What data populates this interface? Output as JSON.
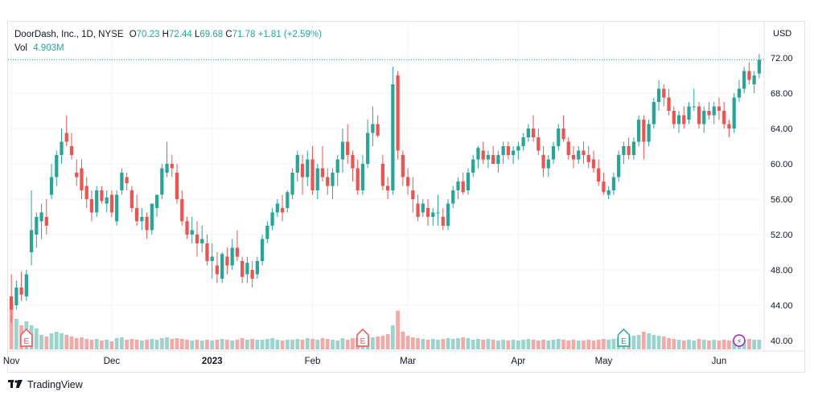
{
  "legend": {
    "symbol": "DoorDash, Inc., 1D, NYSE",
    "open_label": "O",
    "open": "70.23",
    "high_label": "H",
    "high": "72.44",
    "low_label": "L",
    "low": "69.68",
    "close_label": "C",
    "close": "71.78",
    "change": "+1.81 (+2.59%)",
    "vol_label": "Vol",
    "vol": "4.903M"
  },
  "footer": {
    "brand": "TradingView"
  },
  "colors": {
    "up": "#26a69a",
    "down": "#ef5350",
    "vol_up": "#9bd3cd",
    "vol_down": "#f4a9a7",
    "grid": "#f0f3fa",
    "text": "#131722"
  },
  "chart_data": {
    "type": "candlestick",
    "currency": "USD",
    "ylim": [
      39,
      73.5
    ],
    "y_ticks": [
      "40.00",
      "44.00",
      "48.00",
      "52.00",
      "56.00",
      "60.00",
      "64.00",
      "68.00",
      "72.00"
    ],
    "last_price": 71.78,
    "x_labels": [
      {
        "label": "Nov",
        "index": 0
      },
      {
        "label": "Dec",
        "index": 20
      },
      {
        "label": "2023",
        "index": 40
      },
      {
        "label": "Feb",
        "index": 60
      },
      {
        "label": "Mar",
        "index": 79
      },
      {
        "label": "Apr",
        "index": 101
      },
      {
        "label": "May",
        "index": 118
      },
      {
        "label": "Jun",
        "index": 141
      }
    ],
    "earnings_markers": [
      {
        "index": 3,
        "label": "E",
        "color": "#ef5350"
      },
      {
        "index": 70,
        "label": "E",
        "color": "#ef5350"
      },
      {
        "index": 122,
        "label": "E",
        "color": "#26a69a"
      }
    ],
    "dividend_markers": [
      {
        "index": 145,
        "label": "⚡",
        "color": "#9c27b0"
      }
    ],
    "candles": [
      [
        45.0,
        47.5,
        42.0,
        43.5,
        0.6
      ],
      [
        44.0,
        46.8,
        43.5,
        46.0,
        0.38
      ],
      [
        46.0,
        47.8,
        44.5,
        45.2,
        0.3
      ],
      [
        45.0,
        48.0,
        44.5,
        47.5,
        0.35
      ],
      [
        50.0,
        57.0,
        48.5,
        52.5,
        0.3
      ],
      [
        52.0,
        54.5,
        50.5,
        54.0,
        0.26
      ],
      [
        53.5,
        55.5,
        51.5,
        54.5,
        0.18
      ],
      [
        54.0,
        56.0,
        52.0,
        53.0,
        0.16
      ],
      [
        56.5,
        60.0,
        56.0,
        58.5,
        0.2
      ],
      [
        58.5,
        61.5,
        57.5,
        61.0,
        0.22
      ],
      [
        61.0,
        64.0,
        60.0,
        62.5,
        0.2
      ],
      [
        63.5,
        65.5,
        62.0,
        62.5,
        0.18
      ],
      [
        62.0,
        63.5,
        60.5,
        61.0,
        0.16
      ],
      [
        59.0,
        60.5,
        57.5,
        58.5,
        0.14
      ],
      [
        59.5,
        60.5,
        56.0,
        57.0,
        0.15
      ],
      [
        57.5,
        58.5,
        55.0,
        56.0,
        0.13
      ],
      [
        56.0,
        57.0,
        53.5,
        54.5,
        0.12
      ],
      [
        54.5,
        57.5,
        54.0,
        57.0,
        0.13
      ],
      [
        57.0,
        57.5,
        55.5,
        55.8,
        0.11
      ],
      [
        55.5,
        57.0,
        54.5,
        56.2,
        0.12
      ],
      [
        56.5,
        57.0,
        54.0,
        54.5,
        0.1
      ],
      [
        53.5,
        57.0,
        53.0,
        56.5,
        0.14
      ],
      [
        57.0,
        59.5,
        56.5,
        59.0,
        0.15
      ],
      [
        58.5,
        59.0,
        57.0,
        57.8,
        0.12
      ],
      [
        57.0,
        57.5,
        54.5,
        55.0,
        0.13
      ],
      [
        55.0,
        56.5,
        53.0,
        53.5,
        0.12
      ],
      [
        53.5,
        55.0,
        52.5,
        54.0,
        0.11
      ],
      [
        54.0,
        54.5,
        51.5,
        52.5,
        0.12
      ],
      [
        52.5,
        55.5,
        52.0,
        55.5,
        0.13
      ],
      [
        55.0,
        56.5,
        54.0,
        56.5,
        0.12
      ],
      [
        56.5,
        60.0,
        56.0,
        59.5,
        0.14
      ],
      [
        59.0,
        62.5,
        58.5,
        60.0,
        0.15
      ],
      [
        60.0,
        61.0,
        58.5,
        59.5,
        0.13
      ],
      [
        59.0,
        60.0,
        55.5,
        56.0,
        0.14
      ],
      [
        56.0,
        57.0,
        53.0,
        53.5,
        0.13
      ],
      [
        53.5,
        54.0,
        51.5,
        52.0,
        0.12
      ],
      [
        52.0,
        54.0,
        51.0,
        52.5,
        0.11
      ],
      [
        52.0,
        53.5,
        49.5,
        51.0,
        0.12
      ],
      [
        51.0,
        53.0,
        50.0,
        51.5,
        0.11
      ],
      [
        51.0,
        52.0,
        48.5,
        49.0,
        0.12
      ],
      [
        49.0,
        51.0,
        47.0,
        49.5,
        0.11
      ],
      [
        48.5,
        50.0,
        46.5,
        47.5,
        0.12
      ],
      [
        47.0,
        50.0,
        46.5,
        49.8,
        0.13
      ],
      [
        49.5,
        50.5,
        47.5,
        48.5,
        0.12
      ],
      [
        48.5,
        51.5,
        48.0,
        50.5,
        0.11
      ],
      [
        50.5,
        52.5,
        49.0,
        49.5,
        0.12
      ],
      [
        49.0,
        49.5,
        46.5,
        47.2,
        0.14
      ],
      [
        47.5,
        49.5,
        46.5,
        48.8,
        0.12
      ],
      [
        48.0,
        49.0,
        46.0,
        47.0,
        0.13
      ],
      [
        47.5,
        49.5,
        47.0,
        49.0,
        0.12
      ],
      [
        49.0,
        52.0,
        48.5,
        51.5,
        0.12
      ],
      [
        51.5,
        53.5,
        51.0,
        53.0,
        0.13
      ],
      [
        53.0,
        55.0,
        52.5,
        54.5,
        0.14
      ],
      [
        54.5,
        56.0,
        54.0,
        55.5,
        0.12
      ],
      [
        55.0,
        56.5,
        53.5,
        54.5,
        0.11
      ],
      [
        55.0,
        57.0,
        54.5,
        56.8,
        0.12
      ],
      [
        56.5,
        59.5,
        56.0,
        59.0,
        0.12
      ],
      [
        59.0,
        61.5,
        58.0,
        61.0,
        0.13
      ],
      [
        60.0,
        61.0,
        56.5,
        58.5,
        0.12
      ],
      [
        58.5,
        61.5,
        57.5,
        60.5,
        0.14
      ],
      [
        60.5,
        62.0,
        56.5,
        57.0,
        0.13
      ],
      [
        57.0,
        60.0,
        56.0,
        59.5,
        0.12
      ],
      [
        59.5,
        62.0,
        58.0,
        58.5,
        0.14
      ],
      [
        58.5,
        59.5,
        56.5,
        57.5,
        0.13
      ],
      [
        57.5,
        59.5,
        56.0,
        59.0,
        0.12
      ],
      [
        59.0,
        61.0,
        57.5,
        60.5,
        0.11
      ],
      [
        60.5,
        64.0,
        59.0,
        62.5,
        0.14
      ],
      [
        62.5,
        64.5,
        60.0,
        61.0,
        0.12
      ],
      [
        61.0,
        61.5,
        58.0,
        59.5,
        0.14
      ],
      [
        59.5,
        60.5,
        56.5,
        57.0,
        0.15
      ],
      [
        57.0,
        61.0,
        56.5,
        60.0,
        0.13
      ],
      [
        60.0,
        65.0,
        59.5,
        63.5,
        0.16
      ],
      [
        63.5,
        66.5,
        62.0,
        64.5,
        0.15
      ],
      [
        64.5,
        65.5,
        63.0,
        63.2,
        0.16
      ],
      [
        60.0,
        61.0,
        57.0,
        57.5,
        0.17
      ],
      [
        57.5,
        58.5,
        56.0,
        57.0,
        0.19
      ],
      [
        57.0,
        71.0,
        56.5,
        69.0,
        0.3
      ],
      [
        70.0,
        70.5,
        60.5,
        61.5,
        0.48
      ],
      [
        61.0,
        61.5,
        57.5,
        58.5,
        0.22
      ],
      [
        58.5,
        59.5,
        56.5,
        57.5,
        0.17
      ],
      [
        57.0,
        58.5,
        54.5,
        56.0,
        0.15
      ],
      [
        55.5,
        56.5,
        53.5,
        54.0,
        0.14
      ],
      [
        54.5,
        56.0,
        54.0,
        55.5,
        0.13
      ],
      [
        55.0,
        56.0,
        53.0,
        54.0,
        0.12
      ],
      [
        54.0,
        55.0,
        53.0,
        54.5,
        0.13
      ],
      [
        54.5,
        56.5,
        53.0,
        54.5,
        0.12
      ],
      [
        54.0,
        55.0,
        52.5,
        53.0,
        0.13
      ],
      [
        53.0,
        56.0,
        52.5,
        55.5,
        0.14
      ],
      [
        55.5,
        57.5,
        55.0,
        57.0,
        0.13
      ],
      [
        57.0,
        58.5,
        56.0,
        58.0,
        0.14
      ],
      [
        58.0,
        59.0,
        56.5,
        56.8,
        0.15
      ],
      [
        57.0,
        59.5,
        56.5,
        59.0,
        0.14
      ],
      [
        59.0,
        61.0,
        58.5,
        60.5,
        0.12
      ],
      [
        60.5,
        62.0,
        59.5,
        61.8,
        0.13
      ],
      [
        61.5,
        62.5,
        60.0,
        60.5,
        0.12
      ],
      [
        60.5,
        61.5,
        59.5,
        61.0,
        0.13
      ],
      [
        61.0,
        62.0,
        60.0,
        60.0,
        0.12
      ],
      [
        60.0,
        61.5,
        59.0,
        61.0,
        0.11
      ],
      [
        61.0,
        62.5,
        60.0,
        62.0,
        0.12
      ],
      [
        62.0,
        62.5,
        60.5,
        61.0,
        0.11
      ],
      [
        61.0,
        62.0,
        60.0,
        61.5,
        0.12
      ],
      [
        61.5,
        62.5,
        60.5,
        62.0,
        0.11
      ],
      [
        62.0,
        63.5,
        61.5,
        63.0,
        0.12
      ],
      [
        63.0,
        64.5,
        62.5,
        64.0,
        0.13
      ],
      [
        64.0,
        65.5,
        62.5,
        63.0,
        0.12
      ],
      [
        63.0,
        64.0,
        61.0,
        61.5,
        0.11
      ],
      [
        61.0,
        62.0,
        58.5,
        59.5,
        0.12
      ],
      [
        59.5,
        61.0,
        58.5,
        60.5,
        0.11
      ],
      [
        60.5,
        62.5,
        60.0,
        62.0,
        0.12
      ],
      [
        62.0,
        64.5,
        61.5,
        64.0,
        0.13
      ],
      [
        64.0,
        65.5,
        62.5,
        62.8,
        0.12
      ],
      [
        62.5,
        63.0,
        60.5,
        61.0,
        0.11
      ],
      [
        61.0,
        62.0,
        59.5,
        60.5,
        0.12
      ],
      [
        60.5,
        62.0,
        60.0,
        61.5,
        0.11
      ],
      [
        61.5,
        62.5,
        60.0,
        61.0,
        0.11
      ],
      [
        61.0,
        62.0,
        59.5,
        60.2,
        0.12
      ],
      [
        60.5,
        61.5,
        59.0,
        59.5,
        0.11
      ],
      [
        59.5,
        60.5,
        57.5,
        58.0,
        0.12
      ],
      [
        58.0,
        59.0,
        56.5,
        56.8,
        0.13
      ],
      [
        56.5,
        57.5,
        56.0,
        57.0,
        0.12
      ],
      [
        57.0,
        59.0,
        56.5,
        58.5,
        0.13
      ],
      [
        58.5,
        61.5,
        58.0,
        61.0,
        0.14
      ],
      [
        61.0,
        62.5,
        60.0,
        62.0,
        0.15
      ],
      [
        62.0,
        63.0,
        60.5,
        61.0,
        0.16
      ],
      [
        61.0,
        63.0,
        60.5,
        62.5,
        0.17
      ],
      [
        62.5,
        65.5,
        62.0,
        65.0,
        0.18
      ],
      [
        65.0,
        65.5,
        60.5,
        62.5,
        0.22
      ],
      [
        62.5,
        65.0,
        62.0,
        64.5,
        0.2
      ],
      [
        64.5,
        67.5,
        64.0,
        67.0,
        0.18
      ],
      [
        67.0,
        69.5,
        66.0,
        68.5,
        0.17
      ],
      [
        68.5,
        69.0,
        66.5,
        67.5,
        0.16
      ],
      [
        67.5,
        68.5,
        65.5,
        66.0,
        0.14
      ],
      [
        66.0,
        66.5,
        64.0,
        64.5,
        0.13
      ],
      [
        64.5,
        66.0,
        63.5,
        65.5,
        0.12
      ],
      [
        65.5,
        66.5,
        64.0,
        64.5,
        0.11
      ],
      [
        65.0,
        67.0,
        64.5,
        66.5,
        0.12
      ],
      [
        66.5,
        68.5,
        66.0,
        66.5,
        0.11
      ],
      [
        66.5,
        67.0,
        64.0,
        64.5,
        0.13
      ],
      [
        64.5,
        66.5,
        63.5,
        66.0,
        0.12
      ],
      [
        66.0,
        67.0,
        65.0,
        65.5,
        0.11
      ],
      [
        65.5,
        67.0,
        64.5,
        66.5,
        0.12
      ],
      [
        66.5,
        67.5,
        65.0,
        66.0,
        0.11
      ],
      [
        66.0,
        67.0,
        64.0,
        64.5,
        0.12
      ],
      [
        64.5,
        65.0,
        63.0,
        64.0,
        0.11
      ],
      [
        64.0,
        68.0,
        63.5,
        67.5,
        0.12
      ],
      [
        67.5,
        69.5,
        67.0,
        68.5,
        0.11
      ],
      [
        68.5,
        71.0,
        68.0,
        70.5,
        0.12
      ],
      [
        70.5,
        71.5,
        69.0,
        69.5,
        0.13
      ],
      [
        69.0,
        70.5,
        68.0,
        70.0,
        0.12
      ],
      [
        70.23,
        72.44,
        69.68,
        71.78,
        0.12
      ]
    ]
  }
}
